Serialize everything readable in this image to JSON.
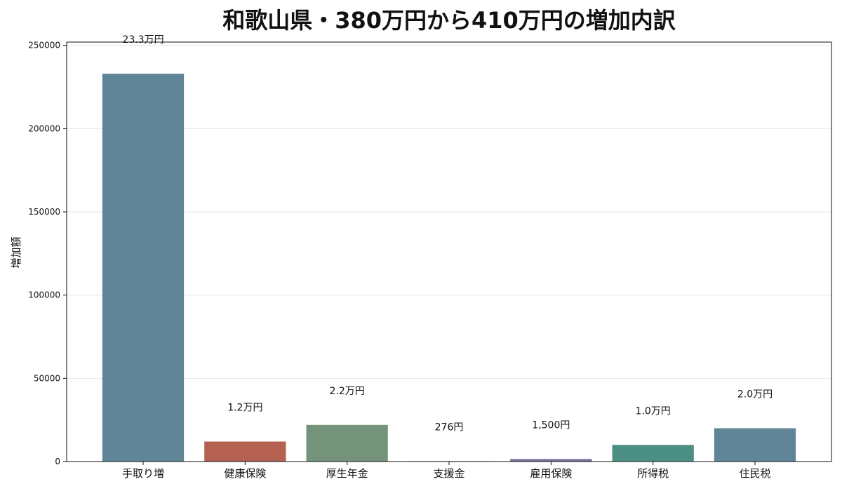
{
  "chart_data": {
    "type": "bar",
    "title": "和歌山県・380万円から410万円の増加内訳",
    "xlabel": "",
    "ylabel": "増加額",
    "ylim": [
      0,
      252000
    ],
    "yticks": [
      "0",
      "50000",
      "100000",
      "150000",
      "200000",
      "250000"
    ],
    "ytick_values": [
      0,
      50000,
      100000,
      150000,
      200000,
      250000
    ],
    "grid": true,
    "categories": [
      "手取り増",
      "健康保険",
      "厚生年金",
      "支援金",
      "雇用保険",
      "所得税",
      "住民税"
    ],
    "values": [
      233000,
      12000,
      22000,
      276,
      1500,
      10000,
      20000
    ],
    "data_labels": [
      "23.3万円",
      "1.2万円",
      "2.2万円",
      "276円",
      "1,500円",
      "1.0万円",
      "2.0万円"
    ],
    "colors": [
      "#5f8596",
      "#b56152",
      "#75937a",
      "#8b6fa0",
      "#72729a",
      "#4b8f83",
      "#5f8596"
    ]
  }
}
